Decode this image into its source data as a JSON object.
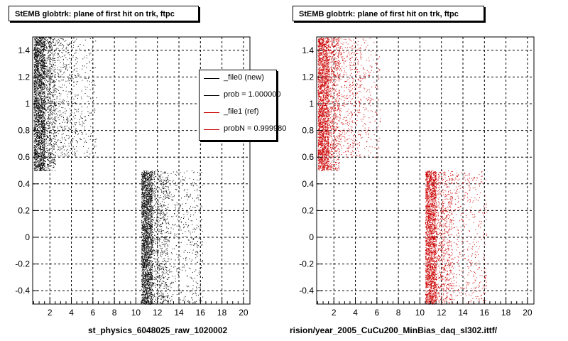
{
  "chart_data": [
    {
      "type": "scatter",
      "title": "StEMB globtrk: plane of first hit on trk, ftpc",
      "xlabel": "st_physics_6048025_raw_1020002",
      "ylabel": "",
      "xlim": [
        0.4,
        20.6
      ],
      "ylim": [
        -0.5,
        1.5
      ],
      "xticks": [
        2,
        4,
        6,
        8,
        10,
        12,
        14,
        16,
        18,
        20
      ],
      "yticks": [
        -0.4,
        -0.2,
        0,
        0.2,
        0.4,
        0.6,
        0.8,
        1,
        1.2,
        1.4
      ],
      "grid": true,
      "color": "#000000",
      "clusters": [
        {
          "x": [
            0.5,
            1.5
          ],
          "y": [
            0.5,
            1.5
          ],
          "density": "high"
        },
        {
          "x": [
            1.5,
            2.5
          ],
          "y": [
            0.5,
            1.5
          ],
          "density": "medium"
        },
        {
          "x": [
            2.5,
            4.5
          ],
          "y": [
            0.6,
            1.5
          ],
          "density": "low"
        },
        {
          "x": [
            4.5,
            6.3
          ],
          "y": [
            0.6,
            1.5
          ],
          "density": "very low"
        },
        {
          "x": [
            10.5,
            11.5
          ],
          "y": [
            -0.5,
            0.5
          ],
          "density": "high"
        },
        {
          "x": [
            11.5,
            13.0
          ],
          "y": [
            -0.5,
            0.5
          ],
          "density": "medium"
        },
        {
          "x": [
            13.0,
            16.2
          ],
          "y": [
            -0.5,
            0.5
          ],
          "density": "low"
        }
      ],
      "legend": {
        "placement": "top-right",
        "entries": [
          {
            "label": "_file0 (new)",
            "color": "#000000"
          },
          {
            "label": "prob = 1.000000",
            "color": "#000000"
          },
          {
            "label": "_file1 (ref)",
            "color": "#cc0000"
          },
          {
            "label": "probN = 0.999980",
            "color": "#cc0000"
          }
        ]
      }
    },
    {
      "type": "scatter",
      "title": "StEMB globtrk: plane of first hit on trk, ftpc",
      "xlabel": "rision/year_2005_CuCu200_MinBias_daq_sl302.ittf/",
      "ylabel": "",
      "xlim": [
        0.4,
        20.6
      ],
      "ylim": [
        -0.5,
        1.5
      ],
      "xticks": [
        2,
        4,
        6,
        8,
        10,
        12,
        14,
        16,
        18,
        20
      ],
      "yticks": [
        -0.4,
        -0.2,
        0,
        0.2,
        0.4,
        0.6,
        0.8,
        1,
        1.2,
        1.4
      ],
      "grid": true,
      "color": "#cc0000",
      "clusters": [
        {
          "x": [
            0.5,
            1.5
          ],
          "y": [
            0.5,
            1.5
          ],
          "density": "high"
        },
        {
          "x": [
            1.5,
            2.5
          ],
          "y": [
            0.5,
            1.5
          ],
          "density": "medium"
        },
        {
          "x": [
            2.5,
            4.5
          ],
          "y": [
            0.6,
            1.5
          ],
          "density": "low"
        },
        {
          "x": [
            4.5,
            6.3
          ],
          "y": [
            0.6,
            1.5
          ],
          "density": "very low"
        },
        {
          "x": [
            10.5,
            11.5
          ],
          "y": [
            -0.5,
            0.5
          ],
          "density": "high"
        },
        {
          "x": [
            11.5,
            13.0
          ],
          "y": [
            -0.5,
            0.5
          ],
          "density": "medium"
        },
        {
          "x": [
            13.0,
            16.2
          ],
          "y": [
            -0.5,
            0.5
          ],
          "density": "low"
        }
      ]
    }
  ]
}
